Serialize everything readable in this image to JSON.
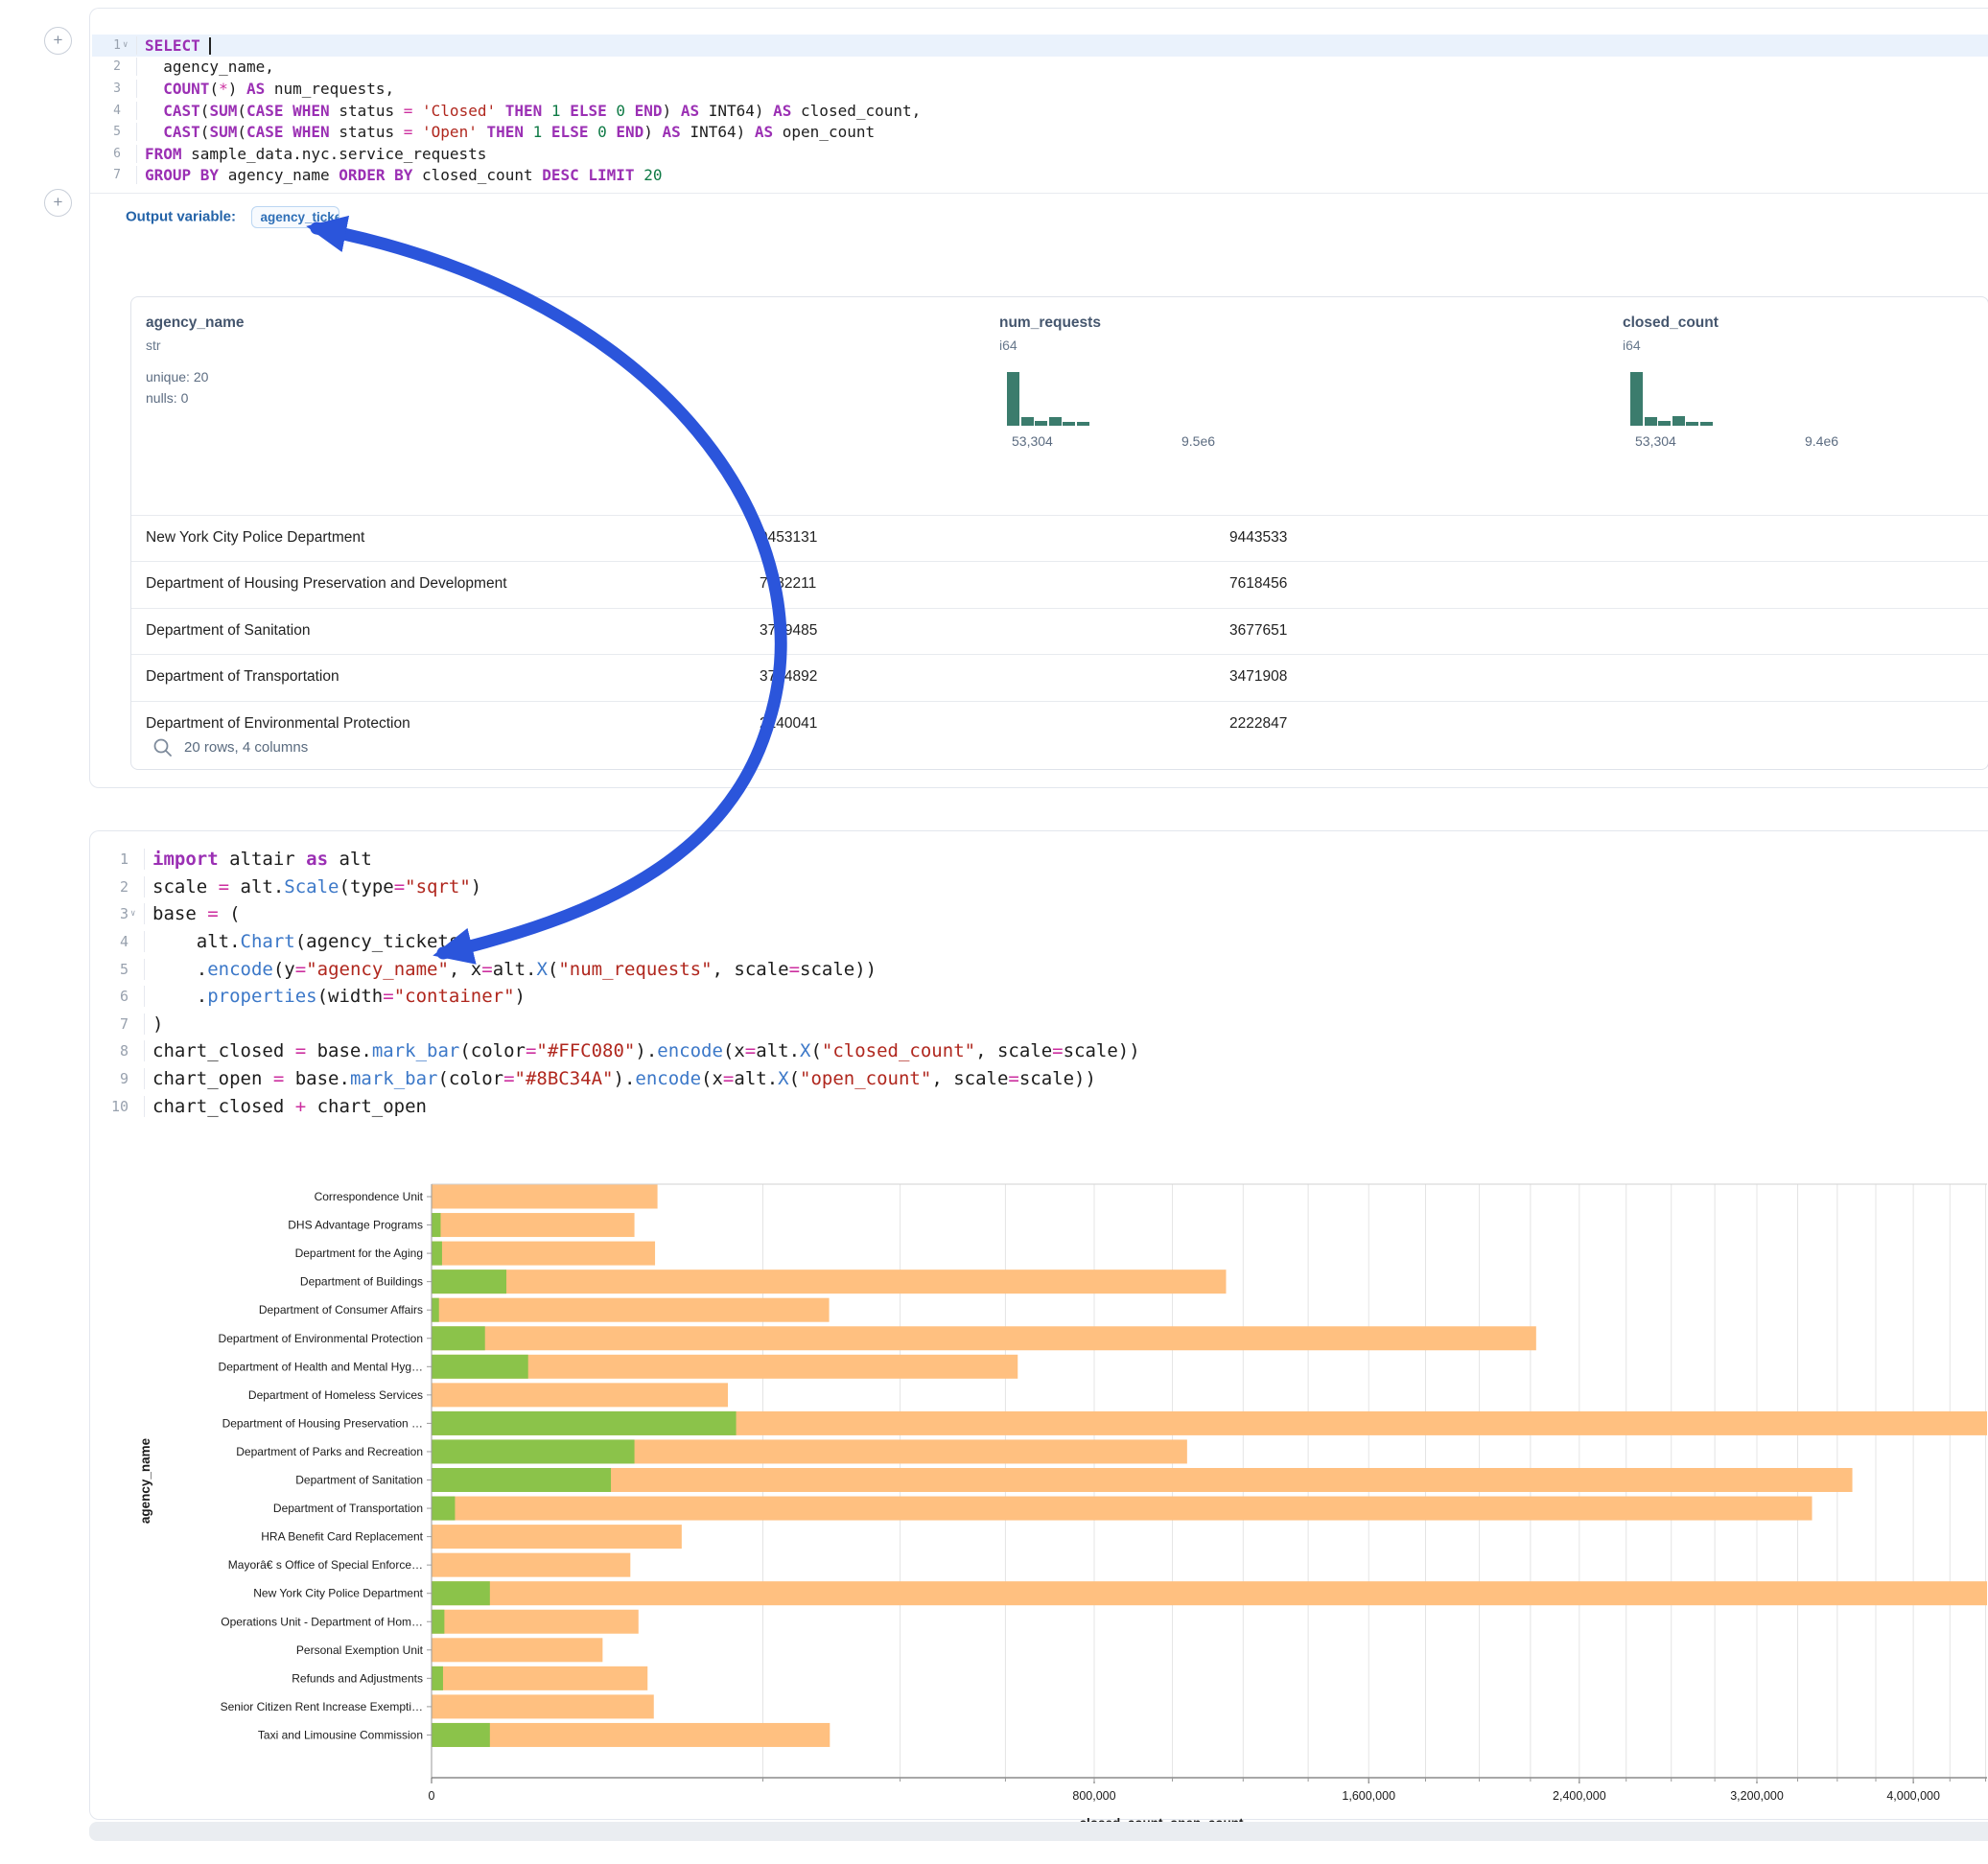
{
  "accent_colors": {
    "arrow_blue": "#2B55DB",
    "histogram_teal": "#3B7C6D",
    "closed_bar": "#FFC080",
    "open_bar": "#8BC34A"
  },
  "sql_cell": {
    "add_button_label": "+",
    "lines": [
      [
        {
          "t": "SELECT",
          "c": "k"
        },
        {
          "t": " ",
          "c": "d"
        },
        {
          "t": "|",
          "c": "cur"
        }
      ],
      [
        {
          "t": "  agency_name,",
          "c": "d"
        }
      ],
      [
        {
          "t": "  ",
          "c": "d"
        },
        {
          "t": "COUNT",
          "c": "k"
        },
        {
          "t": "(",
          "c": "d"
        },
        {
          "t": "*",
          "c": "o"
        },
        {
          "t": ") ",
          "c": "d"
        },
        {
          "t": "AS",
          "c": "k"
        },
        {
          "t": " num_requests,",
          "c": "d"
        }
      ],
      [
        {
          "t": "  ",
          "c": "d"
        },
        {
          "t": "CAST",
          "c": "k"
        },
        {
          "t": "(",
          "c": "d"
        },
        {
          "t": "SUM",
          "c": "k"
        },
        {
          "t": "(",
          "c": "d"
        },
        {
          "t": "CASE WHEN",
          "c": "k"
        },
        {
          "t": " status ",
          "c": "d"
        },
        {
          "t": "=",
          "c": "o"
        },
        {
          "t": " ",
          "c": "d"
        },
        {
          "t": "'Closed'",
          "c": "s"
        },
        {
          "t": " ",
          "c": "d"
        },
        {
          "t": "THEN",
          "c": "k"
        },
        {
          "t": " ",
          "c": "d"
        },
        {
          "t": "1",
          "c": "n"
        },
        {
          "t": " ",
          "c": "d"
        },
        {
          "t": "ELSE",
          "c": "k"
        },
        {
          "t": " ",
          "c": "d"
        },
        {
          "t": "0",
          "c": "n"
        },
        {
          "t": " ",
          "c": "d"
        },
        {
          "t": "END",
          "c": "k"
        },
        {
          "t": ") ",
          "c": "d"
        },
        {
          "t": "AS",
          "c": "k"
        },
        {
          "t": " INT64) ",
          "c": "d"
        },
        {
          "t": "AS",
          "c": "k"
        },
        {
          "t": " closed_count,",
          "c": "d"
        }
      ],
      [
        {
          "t": "  ",
          "c": "d"
        },
        {
          "t": "CAST",
          "c": "k"
        },
        {
          "t": "(",
          "c": "d"
        },
        {
          "t": "SUM",
          "c": "k"
        },
        {
          "t": "(",
          "c": "d"
        },
        {
          "t": "CASE WHEN",
          "c": "k"
        },
        {
          "t": " status ",
          "c": "d"
        },
        {
          "t": "=",
          "c": "o"
        },
        {
          "t": " ",
          "c": "d"
        },
        {
          "t": "'Open'",
          "c": "s"
        },
        {
          "t": " ",
          "c": "d"
        },
        {
          "t": "THEN",
          "c": "k"
        },
        {
          "t": " ",
          "c": "d"
        },
        {
          "t": "1",
          "c": "n"
        },
        {
          "t": " ",
          "c": "d"
        },
        {
          "t": "ELSE",
          "c": "k"
        },
        {
          "t": " ",
          "c": "d"
        },
        {
          "t": "0",
          "c": "n"
        },
        {
          "t": " ",
          "c": "d"
        },
        {
          "t": "END",
          "c": "k"
        },
        {
          "t": ") ",
          "c": "d"
        },
        {
          "t": "AS",
          "c": "k"
        },
        {
          "t": " INT64) ",
          "c": "d"
        },
        {
          "t": "AS",
          "c": "k"
        },
        {
          "t": " open_count",
          "c": "d"
        }
      ],
      [
        {
          "t": "FROM",
          "c": "k"
        },
        {
          "t": " sample_data.nyc.service_requests",
          "c": "d"
        }
      ],
      [
        {
          "t": "GROUP BY",
          "c": "k"
        },
        {
          "t": " agency_name ",
          "c": "d"
        },
        {
          "t": "ORDER BY",
          "c": "k"
        },
        {
          "t": " closed_count ",
          "c": "d"
        },
        {
          "t": "DESC",
          "c": "k"
        },
        {
          "t": " ",
          "c": "d"
        },
        {
          "t": "LIMIT",
          "c": "k"
        },
        {
          "t": " ",
          "c": "d"
        },
        {
          "t": "20",
          "c": "n"
        }
      ]
    ],
    "output_variable_label": "Output variable:",
    "output_variable_value": "agency_tickets"
  },
  "result_table": {
    "columns": [
      {
        "name": "agency_name",
        "type": "str",
        "stats": [
          "unique: 20",
          "nulls: 0"
        ]
      },
      {
        "name": "num_requests",
        "type": "i64",
        "hist": [
          1,
          0.16,
          0.09,
          0.16,
          0.07,
          0.07
        ],
        "hist_min": "53,304",
        "hist_max": "9.5e6"
      },
      {
        "name": "closed_count",
        "type": "i64",
        "hist": [
          1,
          0.16,
          0.09,
          0.17,
          0.07,
          0.07
        ],
        "hist_min": "53,304",
        "hist_max": "9.4e6"
      }
    ],
    "rows": [
      [
        "New York City Police Department",
        "9453131",
        "9443533"
      ],
      [
        "Department of Housing Preservation and Development",
        "7782211",
        "7618456"
      ],
      [
        "Department of Sanitation",
        "3749485",
        "3677651"
      ],
      [
        "Department of Transportation",
        "3774892",
        "3471908"
      ],
      [
        "Department of Environmental Protection",
        "2240041",
        "2222847"
      ]
    ],
    "footer": "20 rows, 4 columns"
  },
  "python_cell": {
    "lines": [
      [
        {
          "t": "import",
          "c": "k"
        },
        {
          "t": " altair ",
          "c": "d"
        },
        {
          "t": "as",
          "c": "k"
        },
        {
          "t": " alt",
          "c": "d"
        }
      ],
      [
        {
          "t": "scale ",
          "c": "d"
        },
        {
          "t": "=",
          "c": "o"
        },
        {
          "t": " alt.",
          "c": "d"
        },
        {
          "t": "Scale",
          "c": "f"
        },
        {
          "t": "(type",
          "c": "d"
        },
        {
          "t": "=",
          "c": "o"
        },
        {
          "t": "\"sqrt\"",
          "c": "s"
        },
        {
          "t": ")",
          "c": "d"
        }
      ],
      [
        {
          "t": "base ",
          "c": "d"
        },
        {
          "t": "=",
          "c": "o"
        },
        {
          "t": " (",
          "c": "d"
        }
      ],
      [
        {
          "t": "    alt.",
          "c": "d"
        },
        {
          "t": "Chart",
          "c": "f"
        },
        {
          "t": "(agency_tickets)",
          "c": "d"
        }
      ],
      [
        {
          "t": "    .",
          "c": "d"
        },
        {
          "t": "encode",
          "c": "f"
        },
        {
          "t": "(y",
          "c": "d"
        },
        {
          "t": "=",
          "c": "o"
        },
        {
          "t": "\"agency_name\"",
          "c": "s"
        },
        {
          "t": ", x",
          "c": "d"
        },
        {
          "t": "=",
          "c": "o"
        },
        {
          "t": "alt.",
          "c": "d"
        },
        {
          "t": "X",
          "c": "f"
        },
        {
          "t": "(",
          "c": "d"
        },
        {
          "t": "\"num_requests\"",
          "c": "s"
        },
        {
          "t": ", scale",
          "c": "d"
        },
        {
          "t": "=",
          "c": "o"
        },
        {
          "t": "scale))",
          "c": "d"
        }
      ],
      [
        {
          "t": "    .",
          "c": "d"
        },
        {
          "t": "properties",
          "c": "f"
        },
        {
          "t": "(width",
          "c": "d"
        },
        {
          "t": "=",
          "c": "o"
        },
        {
          "t": "\"container\"",
          "c": "s"
        },
        {
          "t": ")",
          "c": "d"
        }
      ],
      [
        {
          "t": ")",
          "c": "d"
        }
      ],
      [
        {
          "t": "chart_closed ",
          "c": "d"
        },
        {
          "t": "=",
          "c": "o"
        },
        {
          "t": " base.",
          "c": "d"
        },
        {
          "t": "mark_bar",
          "c": "f"
        },
        {
          "t": "(color",
          "c": "d"
        },
        {
          "t": "=",
          "c": "o"
        },
        {
          "t": "\"#FFC080\"",
          "c": "s"
        },
        {
          "t": ").",
          "c": "d"
        },
        {
          "t": "encode",
          "c": "f"
        },
        {
          "t": "(x",
          "c": "d"
        },
        {
          "t": "=",
          "c": "o"
        },
        {
          "t": "alt.",
          "c": "d"
        },
        {
          "t": "X",
          "c": "f"
        },
        {
          "t": "(",
          "c": "d"
        },
        {
          "t": "\"closed_count\"",
          "c": "s"
        },
        {
          "t": ", scale",
          "c": "d"
        },
        {
          "t": "=",
          "c": "o"
        },
        {
          "t": "scale))",
          "c": "d"
        }
      ],
      [
        {
          "t": "chart_open ",
          "c": "d"
        },
        {
          "t": "=",
          "c": "o"
        },
        {
          "t": " base.",
          "c": "d"
        },
        {
          "t": "mark_bar",
          "c": "f"
        },
        {
          "t": "(color",
          "c": "d"
        },
        {
          "t": "=",
          "c": "o"
        },
        {
          "t": "\"#8BC34A\"",
          "c": "s"
        },
        {
          "t": ").",
          "c": "d"
        },
        {
          "t": "encode",
          "c": "f"
        },
        {
          "t": "(x",
          "c": "d"
        },
        {
          "t": "=",
          "c": "o"
        },
        {
          "t": "alt.",
          "c": "d"
        },
        {
          "t": "X",
          "c": "f"
        },
        {
          "t": "(",
          "c": "d"
        },
        {
          "t": "\"open_count\"",
          "c": "s"
        },
        {
          "t": ", scale",
          "c": "d"
        },
        {
          "t": "=",
          "c": "o"
        },
        {
          "t": "scale))",
          "c": "d"
        }
      ],
      [
        {
          "t": "chart_closed ",
          "c": "d"
        },
        {
          "t": "+",
          "c": "o"
        },
        {
          "t": " chart_open",
          "c": "d"
        }
      ]
    ]
  },
  "chart_data": {
    "type": "bar",
    "orientation": "horizontal",
    "x_scale": "sqrt",
    "xlabel": "closed_count, open_count",
    "ylabel": "agency_name",
    "x_tick_values": [
      0,
      800000,
      1600000,
      2400000,
      3200000,
      4000000
    ],
    "x_tick_labels": [
      "0",
      "800,000",
      "1,600,000",
      "2,400,000",
      "3,200,000",
      "4,000,000"
    ],
    "x_minor_grid_step": 200000,
    "x_visible_max": 4450000,
    "grid": true,
    "categories": [
      "Correspondence Unit",
      "DHS Advantage Programs",
      "Department for the Aging",
      "Department of Buildings",
      "Department of Consumer Affairs",
      "Department of Environmental Protection",
      "Department of Health and Mental Hyg…",
      "Department of Homeless Services",
      "Department of Housing Preservation …",
      "Department of Parks and Recreation",
      "Department of Sanitation",
      "Department of Transportation",
      "HRA Benefit Card Replacement",
      "Mayorâ€ s Office of Special Enforce…",
      "New York City Police Department",
      "Operations Unit - Department of Hom…",
      "Personal Exemption Unit",
      "Refunds and Adjustments",
      "Senior Citizen Rent Increase Exempti…",
      "Taxi and Limousine Commission"
    ],
    "series": [
      {
        "name": "closed_count",
        "color": "#FFC080",
        "values": [
          93000,
          75000,
          91000,
          1150000,
          288000,
          2222847,
          626000,
          160000,
          7618456,
          1040000,
          3677651,
          3471908,
          114000,
          72000,
          9443533,
          78000,
          53304,
          85000,
          90000,
          289000
        ]
      },
      {
        "name": "open_count",
        "color": "#8BC34A",
        "values": [
          0,
          150,
          200,
          10200,
          100,
          5200,
          17000,
          0,
          169000,
          75000,
          58600,
          1000,
          0,
          0,
          6200,
          300,
          0,
          240,
          0,
          6200
        ]
      }
    ]
  }
}
